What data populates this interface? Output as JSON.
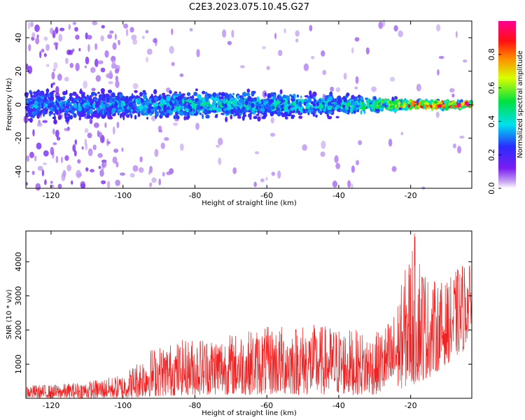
{
  "title": "C2E3.2023.075.10.45.G27",
  "chart_data": [
    {
      "type": "heatmap",
      "xlabel": "Height of straight line (km)",
      "ylabel": "Frequency (Hz)",
      "xlim": [
        -127,
        -3
      ],
      "ylim": [
        -50,
        50
      ],
      "x_ticks": [
        -120,
        -100,
        -80,
        -60,
        -40,
        -20
      ],
      "y_ticks": [
        -40,
        -20,
        0,
        20,
        40
      ],
      "colorbar": {
        "label": "Normalized spectral amplitude",
        "range": [
          0,
          1
        ],
        "ticks": [
          0.0,
          0.2,
          0.4,
          0.6,
          0.8
        ],
        "colormap": "rainbow (purple-blue-cyan-green-yellow-red-magenta)"
      },
      "description_series": {
        "name": "",
        "center_frequency_hz": 0,
        "band_profile": [
          {
            "x": -125,
            "halfwidth_hz": 8,
            "peak_amplitude": 0.25
          },
          {
            "x": -110,
            "halfwidth_hz": 7,
            "peak_amplitude": 0.25
          },
          {
            "x": -100,
            "halfwidth_hz": 6,
            "peak_amplitude": 0.3
          },
          {
            "x": -80,
            "halfwidth_hz": 6,
            "peak_amplitude": 0.35
          },
          {
            "x": -60,
            "halfwidth_hz": 6,
            "peak_amplitude": 0.35
          },
          {
            "x": -40,
            "halfwidth_hz": 5,
            "peak_amplitude": 0.35
          },
          {
            "x": -25,
            "halfwidth_hz": 3,
            "peak_amplitude": 0.55
          },
          {
            "x": -20,
            "halfwidth_hz": 2,
            "peak_amplitude": 0.8
          },
          {
            "x": -10,
            "halfwidth_hz": 2,
            "peak_amplitude": 0.9
          },
          {
            "x": -5,
            "halfwidth_hz": 1.5,
            "peak_amplitude": 0.95
          }
        ]
      }
    },
    {
      "type": "line",
      "xlabel": "Height of straight line (km)",
      "ylabel": "SNR (10 * v/v)",
      "xlim": [
        -127,
        -3
      ],
      "ylim": [
        0,
        4900
      ],
      "x_ticks": [
        -120,
        -100,
        -80,
        -60,
        -40,
        -20
      ],
      "y_ticks": [
        1000,
        2000,
        3000,
        4000
      ],
      "color": "#ee2222",
      "envelope": [
        {
          "x": -127,
          "low": 0,
          "high": 400
        },
        {
          "x": -120,
          "low": 0,
          "high": 400
        },
        {
          "x": -110,
          "low": 0,
          "high": 500
        },
        {
          "x": -100,
          "low": 0,
          "high": 700
        },
        {
          "x": -92,
          "low": 50,
          "high": 1500
        },
        {
          "x": -80,
          "low": 100,
          "high": 1800
        },
        {
          "x": -70,
          "low": 100,
          "high": 1900
        },
        {
          "x": -60,
          "low": 100,
          "high": 2100
        },
        {
          "x": -50,
          "low": 100,
          "high": 2200
        },
        {
          "x": -40,
          "low": 100,
          "high": 2100
        },
        {
          "x": -30,
          "low": 100,
          "high": 1900
        },
        {
          "x": -25,
          "low": 200,
          "high": 2400
        },
        {
          "x": -22,
          "low": 300,
          "high": 3600
        },
        {
          "x": -19,
          "low": 400,
          "high": 4900
        },
        {
          "x": -15,
          "low": 600,
          "high": 3500
        },
        {
          "x": -10,
          "low": 1000,
          "high": 3400
        },
        {
          "x": -5,
          "low": 1400,
          "high": 4100
        },
        {
          "x": -3,
          "low": 2300,
          "high": 3800
        }
      ]
    }
  ]
}
